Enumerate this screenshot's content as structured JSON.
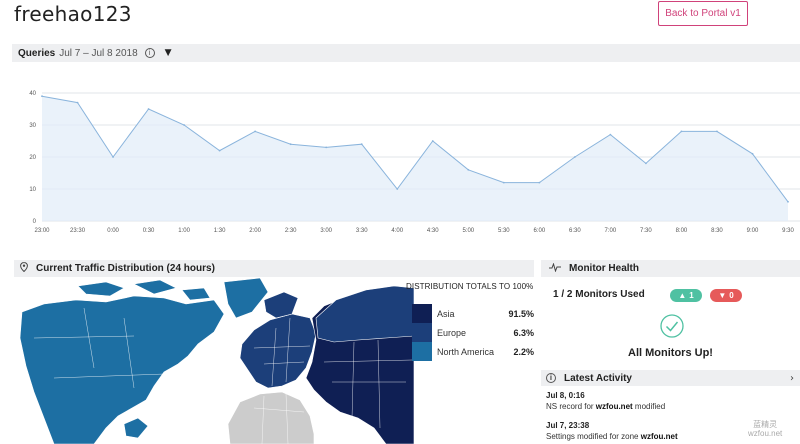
{
  "header": {
    "title": "freehao123",
    "portal_button": "Back to Portal v1"
  },
  "queries": {
    "title": "Queries",
    "date_range": "Jul 7 – Jul 8 2018",
    "info_icon": "info-icon",
    "dropdown_icon": "caret-down-icon"
  },
  "chart_data": {
    "type": "area",
    "x": [
      "23:00",
      "23:30",
      "0:00",
      "0:30",
      "1:00",
      "1:30",
      "2:00",
      "2:30",
      "3:00",
      "3:30",
      "4:00",
      "4:30",
      "5:00",
      "5:30",
      "6:00",
      "6:30",
      "7:00",
      "7:30",
      "8:00",
      "8:30",
      "9:00",
      "9:30"
    ],
    "series": [
      {
        "values": [
          39,
          37,
          20,
          35,
          30,
          22,
          28,
          24,
          23,
          24,
          10,
          25,
          16,
          12,
          12,
          20,
          27,
          18,
          28,
          28,
          21,
          6
        ]
      }
    ],
    "yticks": [
      0,
      10,
      20,
      30,
      40
    ],
    "ylim": [
      0,
      40
    ],
    "grid": true,
    "title": "",
    "xlabel": "",
    "ylabel": "",
    "colors": {
      "line": "#8ab4dc",
      "fill": "#e3eef8"
    }
  },
  "traffic": {
    "title": "Current Traffic Distribution (24 hours)",
    "icon": "map-pin-icon",
    "distribution_title": "DISTRIBUTION TOTALS TO 100%",
    "legend": [
      {
        "name": "Asia",
        "percent": "91.5%",
        "color": "#0f1f54"
      },
      {
        "name": "Europe",
        "percent": "6.3%",
        "color": "#1c3f7a"
      },
      {
        "name": "North America",
        "percent": "2.2%",
        "color": "#1d6fa3"
      }
    ],
    "map_colors": {
      "asia": "#0f1f54",
      "europe": "#1c3f7a",
      "north_america": "#1d6fa3",
      "south_america": "#1d6fa3",
      "africa": "#cccccc"
    }
  },
  "monitor_health": {
    "title": "Monitor Health",
    "icon": "pulse-icon",
    "used": "1 / 2 Monitors Used",
    "up_count": "1",
    "down_count": "0",
    "status": "All Monitors Up!",
    "up_color": "#4fc1a2",
    "down_color": "#e65a5a",
    "check_color": "#4fc1a2"
  },
  "latest_activity": {
    "title": "Latest Activity",
    "icon": "info-icon",
    "items": [
      {
        "time": "Jul 8, 0:16",
        "pre": "NS  record for ",
        "bold": "wzfou.net",
        "post": " modified"
      },
      {
        "time": "Jul 7, 23:38",
        "pre": "Settings modified for zone ",
        "bold": "wzfou.net",
        "post": ""
      }
    ]
  },
  "watermark": {
    "line1": "蓝精灵",
    "line2": "wzfou.net"
  }
}
